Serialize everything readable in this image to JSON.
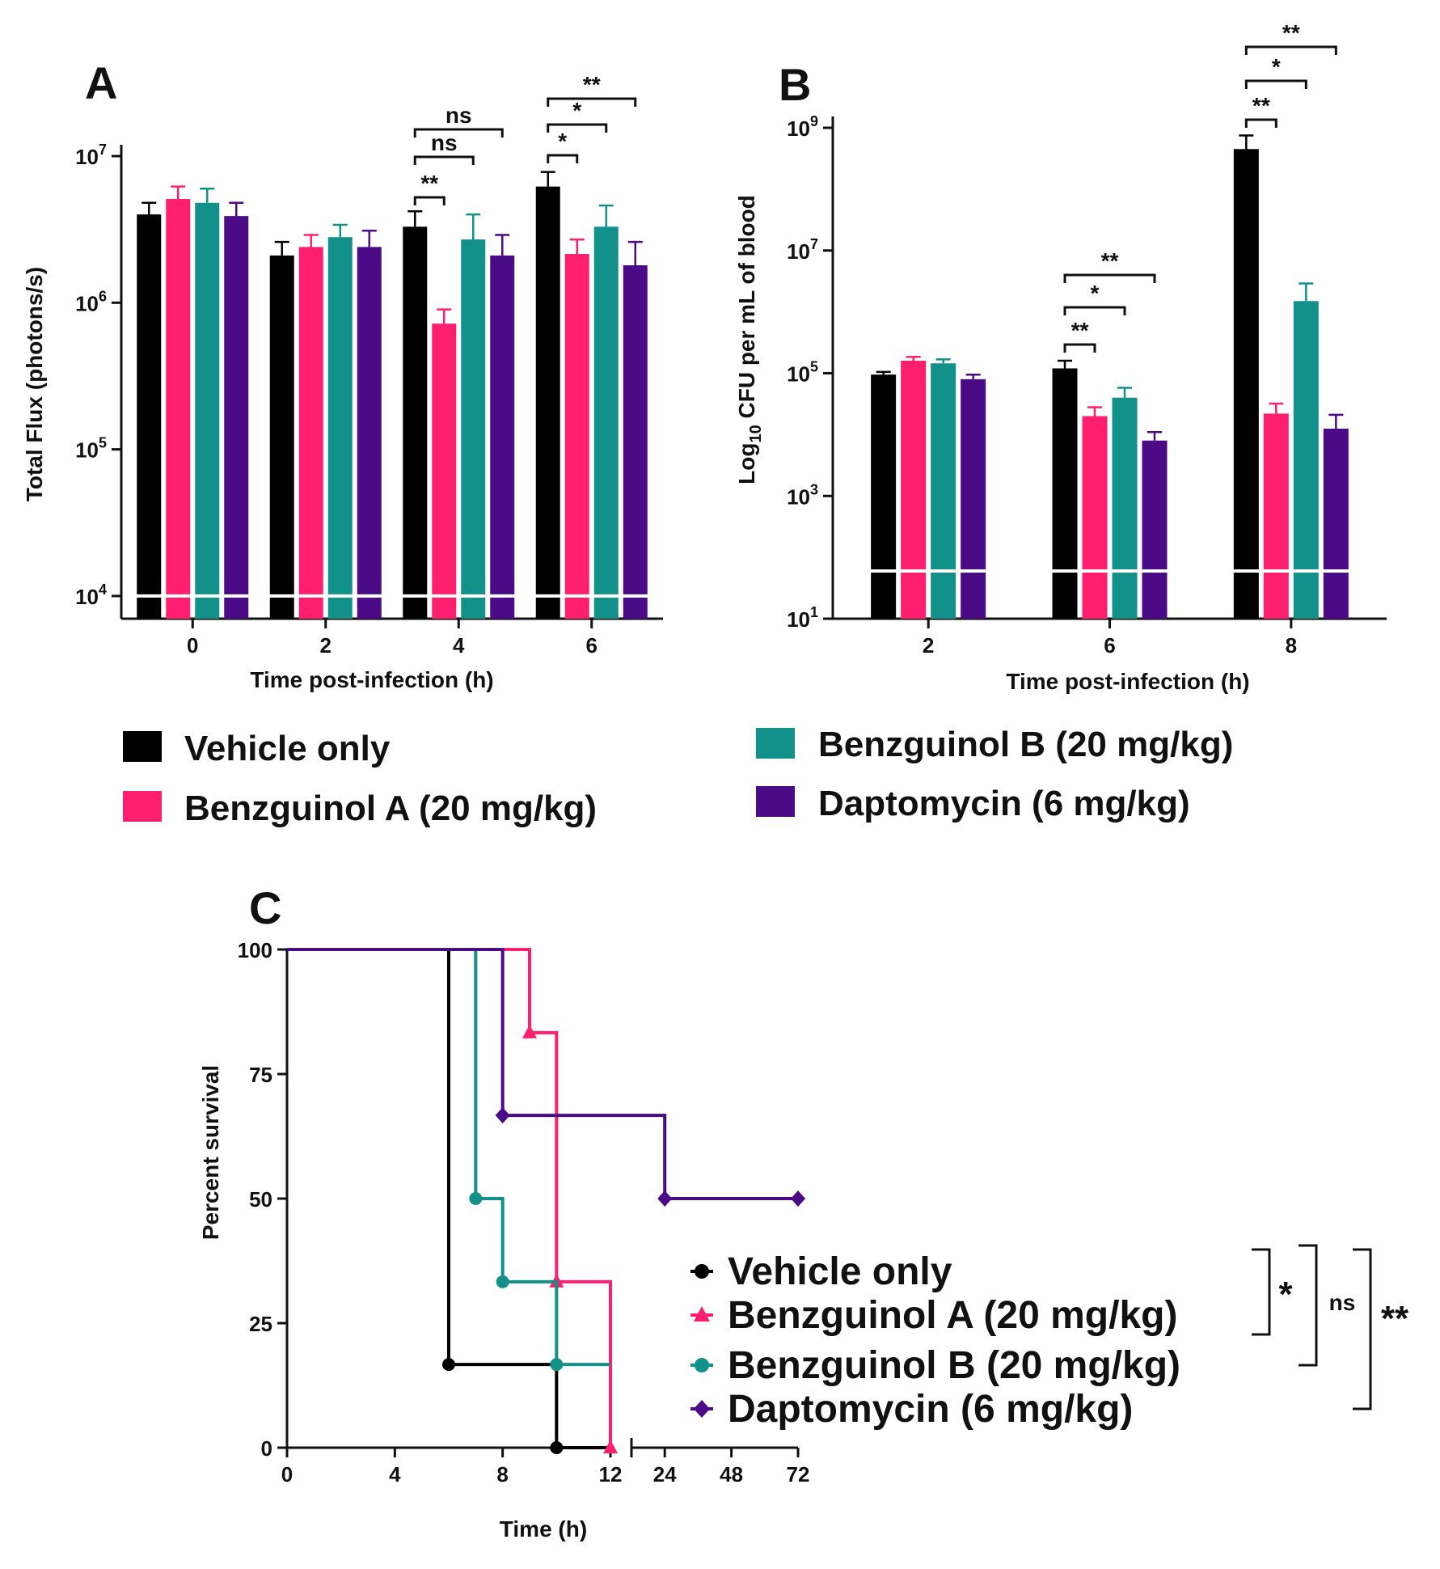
{
  "colors": {
    "vehicle": "#000000",
    "benzA": "#ff1f6e",
    "benzB": "#12908a",
    "dapto": "#4b0a86",
    "axis": "#111111",
    "limit_line": "#ffffff"
  },
  "legend_ab": [
    {
      "key": "vehicle",
      "label": "Vehicle only"
    },
    {
      "key": "benzA",
      "label": "Benzguinol A (20 mg/kg)"
    },
    {
      "key": "benzB",
      "label": "Benzguinol B (20 mg/kg)"
    },
    {
      "key": "dapto",
      "label": "Daptomycin (6 mg/kg)"
    }
  ],
  "chart_data": [
    {
      "panel": "A",
      "type": "bar",
      "scale": "log",
      "ylabel": "Total Flux (photons/s)",
      "xlabel": "Time post-infection (h)",
      "categories": [
        "0",
        "2",
        "4",
        "6"
      ],
      "ylim": [
        7000,
        10000000
      ],
      "yticks": [
        {
          "base": "10",
          "exp": "7",
          "v": 10000000
        },
        {
          "base": "10",
          "exp": "6",
          "v": 1000000
        },
        {
          "base": "10",
          "exp": "5",
          "v": 100000
        },
        {
          "base": "10",
          "exp": "4",
          "v": 10000
        }
      ],
      "detection_limit": 10000,
      "series": [
        {
          "name": "Vehicle only",
          "color_key": "vehicle",
          "values": [
            4000000,
            2100000,
            3300000,
            6200000
          ],
          "errors": [
            4800000,
            2600000,
            4200000,
            7800000
          ]
        },
        {
          "name": "Benzguinol A (20 mg/kg)",
          "color_key": "benzA",
          "values": [
            5100000,
            2400000,
            720000,
            2150000
          ],
          "errors": [
            6200000,
            2900000,
            900000,
            2700000
          ]
        },
        {
          "name": "Benzguinol B (20 mg/kg)",
          "color_key": "benzB",
          "values": [
            4800000,
            2800000,
            2700000,
            3300000
          ],
          "errors": [
            6000000,
            3400000,
            4000000,
            4600000
          ]
        },
        {
          "name": "Daptomycin (6 mg/kg)",
          "color_key": "dapto",
          "values": [
            3900000,
            2400000,
            2100000,
            1800000
          ],
          "errors": [
            4800000,
            3100000,
            2900000,
            2600000
          ]
        }
      ],
      "significance": [
        {
          "cat": 2,
          "from": 0,
          "to": 3,
          "level": 0,
          "label": "ns"
        },
        {
          "cat": 2,
          "from": 0,
          "to": 2,
          "level": 1,
          "label": "ns"
        },
        {
          "cat": 2,
          "from": 0,
          "to": 1,
          "level": 2,
          "label": "**"
        },
        {
          "cat": 3,
          "from": 0,
          "to": 3,
          "level": 0,
          "label": "**"
        },
        {
          "cat": 3,
          "from": 0,
          "to": 2,
          "level": 1,
          "label": "*"
        },
        {
          "cat": 3,
          "from": 0,
          "to": 1,
          "level": 2,
          "label": "*"
        }
      ]
    },
    {
      "panel": "B",
      "type": "bar",
      "scale": "log",
      "ylabel_prefix": "Log",
      "ylabel_sub": "10",
      "ylabel_suffix": " CFU per mL of blood",
      "xlabel": "Time post-infection (h)",
      "categories": [
        "2",
        "6",
        "8"
      ],
      "ylim": [
        10,
        1000000000
      ],
      "yticks": [
        {
          "base": "10",
          "exp": "9",
          "v": 1000000000
        },
        {
          "base": "10",
          "exp": "7",
          "v": 10000000
        },
        {
          "base": "10",
          "exp": "5",
          "v": 100000
        },
        {
          "base": "10",
          "exp": "3",
          "v": 1000
        },
        {
          "base": "10",
          "exp": "1",
          "v": 10
        }
      ],
      "detection_limit": 60,
      "series": [
        {
          "name": "Vehicle only",
          "color_key": "vehicle",
          "values": [
            95000,
            120000,
            450000000
          ],
          "errors": [
            105000,
            160000,
            750000000
          ]
        },
        {
          "name": "Benzguinol A (20 mg/kg)",
          "color_key": "benzA",
          "values": [
            160000,
            20000,
            22000
          ],
          "errors": [
            185000,
            28000,
            32000
          ]
        },
        {
          "name": "Benzguinol B (20 mg/kg)",
          "color_key": "benzB",
          "values": [
            145000,
            40000,
            1500000
          ],
          "errors": [
            168000,
            58000,
            2900000
          ]
        },
        {
          "name": "Daptomycin (6 mg/kg)",
          "color_key": "dapto",
          "values": [
            80000,
            8000,
            12500
          ],
          "errors": [
            95000,
            11000,
            21000
          ]
        }
      ],
      "significance": [
        {
          "cat": 1,
          "from": 0,
          "to": 3,
          "level": 0,
          "label": "**"
        },
        {
          "cat": 1,
          "from": 0,
          "to": 2,
          "level": 1,
          "label": "*"
        },
        {
          "cat": 1,
          "from": 0,
          "to": 1,
          "level": 2,
          "label": "**"
        },
        {
          "cat": 2,
          "from": 0,
          "to": 3,
          "level": 0,
          "label": "**"
        },
        {
          "cat": 2,
          "from": 0,
          "to": 2,
          "level": 1,
          "label": "*"
        },
        {
          "cat": 2,
          "from": 0,
          "to": 1,
          "level": 2,
          "label": "**"
        }
      ]
    },
    {
      "panel": "C",
      "type": "line",
      "subtype": "kaplan-meier",
      "ylabel": "Percent survival",
      "xlabel": "Time (h)",
      "ylim": [
        0,
        100
      ],
      "yticks": [
        "0",
        "25",
        "50",
        "75",
        "100"
      ],
      "xticks_first_segment": [
        "0",
        "4",
        "8",
        "12"
      ],
      "xticks_second_segment": [
        "24",
        "48",
        "72"
      ],
      "series": [
        {
          "name": "Vehicle only",
          "color_key": "vehicle",
          "marker": "circle",
          "steps": [
            [
              0,
              100
            ],
            [
              6,
              16.7
            ],
            [
              10,
              0
            ],
            [
              12,
              0
            ]
          ],
          "markers": [
            [
              6,
              16.7
            ],
            [
              10,
              0
            ]
          ]
        },
        {
          "name": "Benzguinol A (20 mg/kg)",
          "color_key": "benzA",
          "marker": "triangle",
          "steps": [
            [
              0,
              100
            ],
            [
              9,
              83.3
            ],
            [
              10,
              33.3
            ],
            [
              12,
              0
            ]
          ],
          "markers": [
            [
              9,
              83.3
            ],
            [
              10,
              33.3
            ],
            [
              12,
              0
            ]
          ]
        },
        {
          "name": "Benzguinol B (20 mg/kg)",
          "color_key": "benzB",
          "marker": "circle",
          "steps": [
            [
              0,
              100
            ],
            [
              7,
              50
            ],
            [
              8,
              33.3
            ],
            [
              10,
              16.7
            ],
            [
              12,
              16.7
            ]
          ],
          "markers": [
            [
              7,
              50
            ],
            [
              8,
              33.3
            ],
            [
              10,
              16.7
            ]
          ]
        },
        {
          "name": "Daptomycin (6 mg/kg)",
          "color_key": "dapto",
          "marker": "diamond",
          "steps": [
            [
              0,
              100
            ],
            [
              8,
              66.7
            ],
            [
              12,
              66.7
            ],
            [
              24,
              50
            ],
            [
              72,
              50
            ]
          ],
          "markers": [
            [
              8,
              66.7
            ],
            [
              24,
              50
            ],
            [
              72,
              50
            ]
          ]
        }
      ],
      "significance": [
        {
          "from": 0,
          "to": 1,
          "label": "*"
        },
        {
          "from": 0,
          "to": 2,
          "label": "ns"
        },
        {
          "from": 0,
          "to": 3,
          "label": "**"
        }
      ]
    }
  ]
}
